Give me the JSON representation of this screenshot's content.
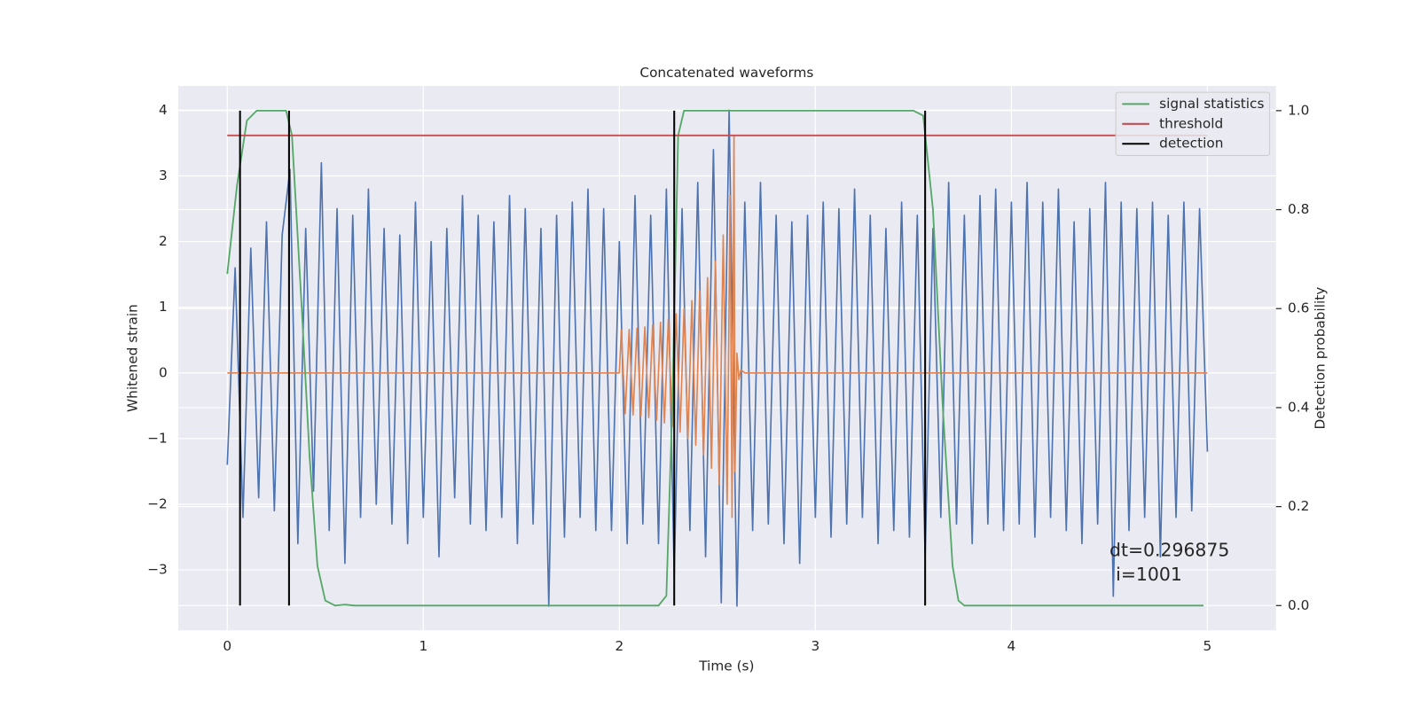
{
  "chart_data": {
    "type": "line",
    "title": "Concatenated waveforms",
    "xlabel": "Time (s)",
    "ylabel": "Whitened strain",
    "y2label": "Detection probability",
    "xlim": [
      -0.25,
      5.35
    ],
    "ylim": [
      -3.92,
      4.37
    ],
    "y2lim": [
      -0.05,
      1.05
    ],
    "xticks": [
      0,
      1,
      2,
      3,
      4,
      5
    ],
    "yticks": [
      {
        "value": -3,
        "label": "−3"
      },
      {
        "value": -2,
        "label": "−2"
      },
      {
        "value": -1,
        "label": "−1"
      },
      0,
      1,
      2,
      3,
      4
    ],
    "y2ticks": [
      {
        "value": 0,
        "label": "0.0"
      },
      0.2,
      0.4,
      0.6,
      0.8,
      {
        "value": 1,
        "label": "1.0"
      }
    ],
    "grid": true,
    "legend": "upper right",
    "annotations": [
      "dt=0.296875",
      "i=1001"
    ],
    "series": [
      {
        "color": "#4c72b0",
        "x": [
          0,
          0.04,
          0.08,
          0.12,
          0.16,
          0.2,
          0.24,
          0.28,
          0.32,
          0.36,
          0.4,
          0.44,
          0.48,
          0.52,
          0.56,
          0.6,
          0.64,
          0.68,
          0.72,
          0.76,
          0.8,
          0.84,
          0.88,
          0.92,
          0.96,
          1,
          1.04,
          1.08,
          1.12,
          1.16,
          1.2,
          1.24,
          1.28,
          1.32,
          1.36,
          1.4,
          1.44,
          1.48,
          1.52,
          1.56,
          1.6,
          1.64,
          1.68,
          1.72,
          1.76,
          1.8,
          1.84,
          1.88,
          1.92,
          1.96,
          2,
          2.04,
          2.08,
          2.12,
          2.16,
          2.2,
          2.24,
          2.28,
          2.32,
          2.36,
          2.4,
          2.44,
          2.48,
          2.52,
          2.56,
          2.6,
          2.64,
          2.68,
          2.72,
          2.76,
          2.8,
          2.84,
          2.88,
          2.92,
          2.96,
          3,
          3.04,
          3.08,
          3.12,
          3.16,
          3.2,
          3.24,
          3.28,
          3.32,
          3.36,
          3.4,
          3.44,
          3.48,
          3.52,
          3.56,
          3.6,
          3.64,
          3.68,
          3.72,
          3.76,
          3.8,
          3.84,
          3.88,
          3.92,
          3.96,
          4,
          4.04,
          4.08,
          4.12,
          4.16,
          4.2,
          4.24,
          4.28,
          4.32,
          4.36,
          4.4,
          4.44,
          4.48,
          4.52,
          4.56,
          4.6,
          4.64,
          4.68,
          4.72,
          4.76,
          4.8,
          4.84,
          4.88,
          4.92,
          4.96,
          5
        ],
        "values": [
          -1.4,
          1.6,
          -2.2,
          1.9,
          -1.9,
          2.3,
          -2.1,
          2.1,
          3.1,
          -2.6,
          2.2,
          -1.8,
          3.2,
          -2.4,
          2.5,
          -2.9,
          2.4,
          -2.2,
          2.8,
          -2.0,
          2.2,
          -2.3,
          2.1,
          -2.6,
          2.6,
          -2.2,
          2.0,
          -2.8,
          2.2,
          -1.9,
          2.7,
          -2.3,
          2.4,
          -2.4,
          2.3,
          -2.2,
          2.7,
          -2.6,
          2.5,
          -2.3,
          2.2,
          -3.55,
          2.4,
          -2.5,
          2.6,
          -2.2,
          2.8,
          -2.4,
          2.5,
          -2.4,
          2.0,
          -2.6,
          2.7,
          -2.3,
          2.4,
          -2.6,
          2.8,
          -3.1,
          2.5,
          -2.4,
          2.9,
          -2.8,
          3.4,
          -3.5,
          4.0,
          -3.55,
          2.6,
          -2.4,
          2.9,
          -2.3,
          2.4,
          -2.6,
          2.3,
          -2.9,
          2.4,
          -2.2,
          2.6,
          -2.5,
          2.5,
          -2.3,
          2.8,
          -2.2,
          2.4,
          -2.6,
          2.2,
          -2.4,
          2.6,
          -2.5,
          2.4,
          -2.8,
          2.2,
          -2.2,
          2.9,
          -2.3,
          2.4,
          -2.6,
          2.7,
          -2.3,
          2.8,
          -2.4,
          2.6,
          -2.3,
          2.9,
          -2.5,
          2.6,
          -2.2,
          2.8,
          -2.4,
          2.3,
          -2.6,
          2.5,
          -2.3,
          2.9,
          -3.4,
          2.6,
          -2.4,
          2.5,
          -2.2,
          2.6,
          -2.8,
          2.4,
          -2.2,
          2.6,
          -2.1,
          2.5,
          -1.2
        ]
      },
      {
        "color": "#dd8452",
        "x": [
          0,
          2,
          2.01,
          2.03,
          2.05,
          2.07,
          2.09,
          2.11,
          2.13,
          2.15,
          2.17,
          2.19,
          2.21,
          2.23,
          2.25,
          2.27,
          2.29,
          2.31,
          2.33,
          2.35,
          2.37,
          2.39,
          2.41,
          2.43,
          2.45,
          2.47,
          2.49,
          2.51,
          2.53,
          2.55,
          2.565,
          2.575,
          2.585,
          2.59,
          2.6,
          2.61,
          2.62,
          2.64,
          5
        ],
        "values": [
          0,
          0,
          0.65,
          -0.62,
          0.66,
          -0.64,
          0.68,
          -0.66,
          0.7,
          -0.68,
          0.73,
          -0.72,
          0.77,
          -0.76,
          0.82,
          -0.82,
          0.9,
          -0.9,
          0.98,
          -1.0,
          1.1,
          -1.1,
          1.25,
          -1.25,
          1.45,
          -1.45,
          1.7,
          -1.7,
          2.1,
          -2.0,
          2.7,
          -2.2,
          3.6,
          -1.5,
          0.3,
          -0.1,
          0.05,
          0,
          0
        ]
      },
      {
        "name": "signal statistics",
        "color": "#55a868",
        "axis": "y2",
        "x": [
          0,
          0.05,
          0.1,
          0.15,
          0.3,
          0.33,
          0.38,
          0.42,
          0.46,
          0.5,
          0.55,
          0.6,
          0.65,
          0.7,
          2.2,
          2.24,
          2.27,
          2.3,
          2.33,
          3.5,
          3.55,
          3.6,
          3.65,
          3.7,
          3.73,
          3.76,
          4.98
        ],
        "values": [
          0.67,
          0.85,
          0.98,
          1.0,
          1.0,
          0.95,
          0.6,
          0.3,
          0.08,
          0.01,
          0.0,
          0.002,
          0.0,
          0.0,
          0.0,
          0.02,
          0.4,
          0.95,
          1.0,
          1.0,
          0.99,
          0.8,
          0.4,
          0.08,
          0.01,
          0.0,
          0.0
        ]
      },
      {
        "name": "threshold",
        "color": "#c44e52",
        "axis": "y2",
        "x": [
          0,
          5
        ],
        "values": [
          0.95,
          0.95
        ]
      },
      {
        "name": "detection",
        "color": "#000000",
        "axis": "y2",
        "style": "vlines",
        "x": [
          0.065,
          0.315,
          2.28,
          3.56
        ],
        "ymin": 0,
        "ymax": 1
      }
    ]
  }
}
